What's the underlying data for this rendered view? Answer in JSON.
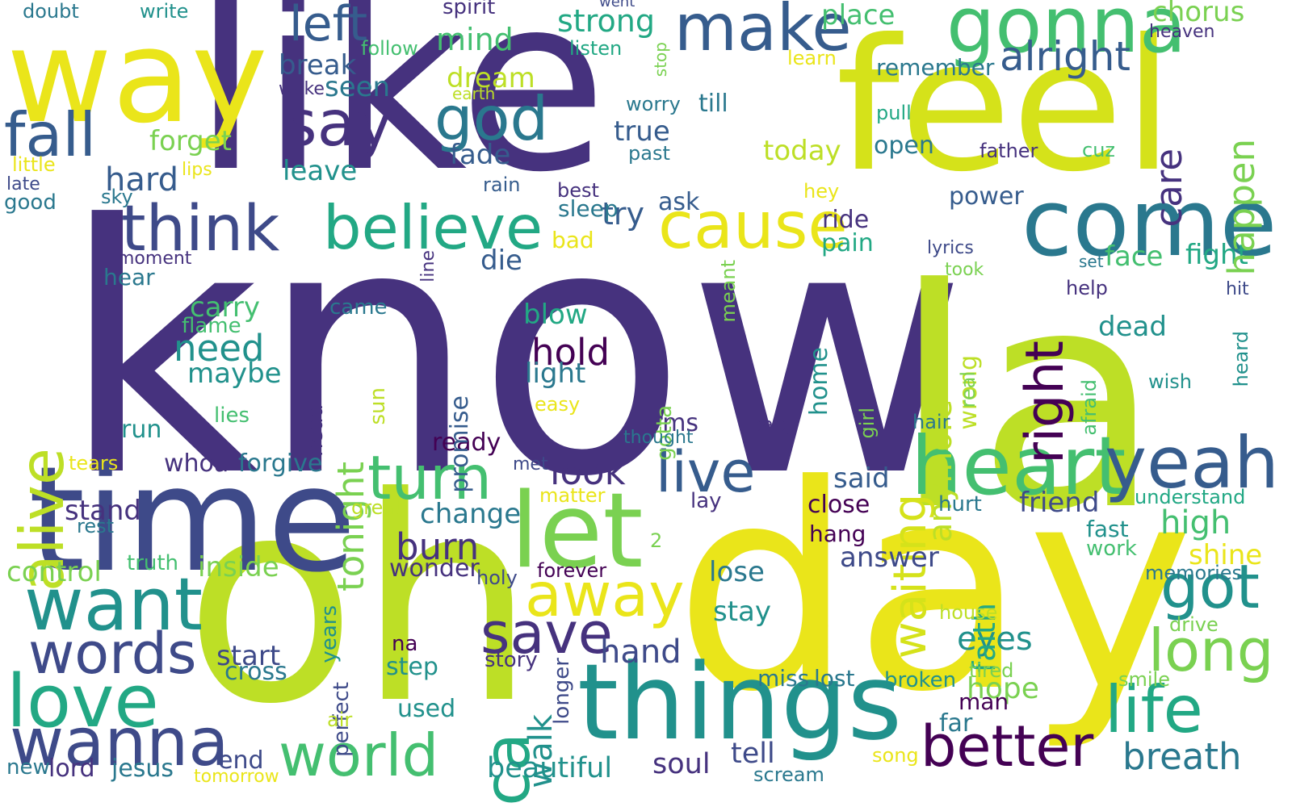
{
  "palette": {
    "dark_purple": "#46327e",
    "indigo": "#3e4a89",
    "blue": "#365c8d",
    "teal_blue": "#2a788e",
    "teal": "#21918c",
    "green_teal": "#22a884",
    "green": "#44bf70",
    "light_green": "#7ad151",
    "yellow_green": "#bddf26",
    "yellow": "#eae51a",
    "deep_purple": "#440154"
  },
  "words": [
    {
      "text": "know",
      "color": "#46327e"
    },
    {
      "text": "like",
      "color": "#46327e"
    },
    {
      "text": "la",
      "color": "#bddf26"
    },
    {
      "text": "day",
      "color": "#eae51a"
    },
    {
      "text": "oh",
      "color": "#bddf26"
    },
    {
      "text": "feel",
      "color": "#d5e21a"
    },
    {
      "text": "way",
      "color": "#eae51a"
    },
    {
      "text": "time",
      "color": "#3e4a89"
    },
    {
      "text": "things",
      "color": "#21918c"
    },
    {
      "text": "come",
      "color": "#2a788e"
    },
    {
      "text": "heart",
      "color": "#44bf70"
    },
    {
      "text": "let",
      "color": "#7ad151"
    },
    {
      "text": "gonna",
      "color": "#44bf70"
    },
    {
      "text": "yeah",
      "color": "#365c8d"
    },
    {
      "text": "want",
      "color": "#21918c"
    },
    {
      "text": "love",
      "color": "#22a884"
    },
    {
      "text": "wanna",
      "color": "#3e4a89"
    },
    {
      "text": "make",
      "color": "#365c8d"
    },
    {
      "text": "think",
      "color": "#3e4a89"
    },
    {
      "text": "cause",
      "color": "#eae51a"
    },
    {
      "text": "believe",
      "color": "#22a884"
    },
    {
      "text": "turn",
      "color": "#44bf70"
    },
    {
      "text": "away",
      "color": "#eae51a"
    },
    {
      "text": "say",
      "color": "#46327e"
    },
    {
      "text": "world",
      "color": "#44bf70"
    },
    {
      "text": "life",
      "color": "#22a884"
    },
    {
      "text": "better",
      "color": "#440154"
    },
    {
      "text": "words",
      "color": "#3e4a89"
    },
    {
      "text": "live",
      "color": "#365c8d"
    },
    {
      "text": "save",
      "color": "#46327e"
    },
    {
      "text": "got",
      "color": "#21918c"
    },
    {
      "text": "god",
      "color": "#2a788e"
    },
    {
      "text": "fall",
      "color": "#365c8d"
    },
    {
      "text": "long",
      "color": "#7ad151"
    },
    {
      "text": "left",
      "color": "#365c8d"
    },
    {
      "text": "ca",
      "color": "#22a884"
    },
    {
      "text": "alive",
      "color": "#bddf26"
    },
    {
      "text": "waiting",
      "color": "#d5e21a"
    },
    {
      "text": "right",
      "color": "#440154"
    },
    {
      "text": "alright",
      "color": "#365c8d"
    },
    {
      "text": "breath",
      "color": "#2a788e"
    },
    {
      "text": "look",
      "color": "#46327e"
    },
    {
      "text": "hold",
      "color": "#440154"
    },
    {
      "text": "need",
      "color": "#21918c"
    },
    {
      "text": "burn",
      "color": "#46327e"
    },
    {
      "text": "beautiful",
      "color": "#21918c"
    },
    {
      "text": "hand",
      "color": "#3e4a89"
    },
    {
      "text": "soul",
      "color": "#46327e"
    },
    {
      "text": "tell",
      "color": "#3e4a89"
    },
    {
      "text": "eyes",
      "color": "#21918c"
    },
    {
      "text": "strong",
      "color": "#22a884"
    },
    {
      "text": "mind",
      "color": "#44bf70"
    },
    {
      "text": "chorus",
      "color": "#7ad151"
    },
    {
      "text": "place",
      "color": "#44bf70"
    },
    {
      "text": "true",
      "color": "#365c8d"
    },
    {
      "text": "today",
      "color": "#bddf26"
    },
    {
      "text": "face",
      "color": "#44bf70"
    },
    {
      "text": "fight",
      "color": "#22a884"
    },
    {
      "text": "high",
      "color": "#44bf70"
    },
    {
      "text": "hope",
      "color": "#7ad151"
    },
    {
      "text": "walk",
      "color": "#21918c"
    },
    {
      "text": "tonight",
      "color": "#7ad151"
    },
    {
      "text": "anymore",
      "color": "#bddf26"
    },
    {
      "text": "care",
      "color": "#46327e"
    },
    {
      "text": "happen",
      "color": "#7ad151"
    },
    {
      "text": "faith",
      "color": "#22a884"
    },
    {
      "text": "hard",
      "color": "#365c8d"
    },
    {
      "text": "break",
      "color": "#365c8d"
    },
    {
      "text": "fade",
      "color": "#365c8d"
    },
    {
      "text": "forget",
      "color": "#7ad151"
    },
    {
      "text": "dream",
      "color": "#bddf26"
    },
    {
      "text": "seen",
      "color": "#2a788e"
    },
    {
      "text": "leave",
      "color": "#21918c"
    },
    {
      "text": "maybe",
      "color": "#21918c"
    },
    {
      "text": "carry",
      "color": "#44bf70"
    },
    {
      "text": "die",
      "color": "#365c8d"
    },
    {
      "text": "light",
      "color": "#2a788e"
    },
    {
      "text": "blow",
      "color": "#22a884"
    },
    {
      "text": "try",
      "color": "#365c8d"
    },
    {
      "text": "bad",
      "color": "#eae51a"
    },
    {
      "text": "change",
      "color": "#2a788e"
    },
    {
      "text": "said",
      "color": "#365c8d"
    },
    {
      "text": "answer",
      "color": "#3e4a89"
    },
    {
      "text": "dead",
      "color": "#21918c"
    },
    {
      "text": "start",
      "color": "#3e4a89"
    },
    {
      "text": "control",
      "color": "#7ad151"
    },
    {
      "text": "inside",
      "color": "#7ad151"
    },
    {
      "text": "stay",
      "color": "#21918c"
    },
    {
      "text": "lose",
      "color": "#2a788e"
    },
    {
      "text": "shine",
      "color": "#eae51a"
    },
    {
      "text": "friend",
      "color": "#3e4a89"
    },
    {
      "text": "stand",
      "color": "#46327e"
    },
    {
      "text": "wonder",
      "color": "#46327e"
    },
    {
      "text": "step",
      "color": "#21918c"
    },
    {
      "text": "cross",
      "color": "#2a788e"
    },
    {
      "text": "used",
      "color": "#21918c"
    },
    {
      "text": "end",
      "color": "#3e4a89"
    },
    {
      "text": "lord",
      "color": "#46327e"
    },
    {
      "text": "jesus",
      "color": "#2a788e"
    },
    {
      "text": "run",
      "color": "#21918c"
    },
    {
      "text": "arms",
      "color": "#46327e"
    },
    {
      "text": "ready",
      "color": "#440154"
    },
    {
      "text": "whoa",
      "color": "#46327e"
    },
    {
      "text": "forgive",
      "color": "#2a788e"
    },
    {
      "text": "power",
      "color": "#365c8d"
    },
    {
      "text": "ride",
      "color": "#46327e"
    },
    {
      "text": "pain",
      "color": "#22a884"
    },
    {
      "text": "open",
      "color": "#2a788e"
    },
    {
      "text": "remember",
      "color": "#2a788e"
    },
    {
      "text": "till",
      "color": "#2a788e"
    },
    {
      "text": "ask",
      "color": "#365c8d"
    },
    {
      "text": "sleep",
      "color": "#2a788e"
    },
    {
      "text": "close",
      "color": "#440154"
    },
    {
      "text": "hang",
      "color": "#440154"
    },
    {
      "text": "home",
      "color": "#21918c"
    },
    {
      "text": "wrong",
      "color": "#bddf26"
    },
    {
      "text": "far",
      "color": "#2a788e"
    },
    {
      "text": "man",
      "color": "#440154"
    },
    {
      "text": "fast",
      "color": "#21918c"
    },
    {
      "text": "work",
      "color": "#44bf70"
    },
    {
      "text": "lost",
      "color": "#2a788e"
    },
    {
      "text": "miss",
      "color": "#2a788e"
    },
    {
      "text": "broken",
      "color": "#21918c"
    },
    {
      "text": "tired",
      "color": "#7ad151"
    },
    {
      "text": "smile",
      "color": "#7ad151"
    },
    {
      "text": "memories",
      "color": "#2a788e"
    },
    {
      "text": "understand",
      "color": "#22a884"
    },
    {
      "text": "drive",
      "color": "#7ad151"
    },
    {
      "text": "hurt",
      "color": "#2a788e"
    },
    {
      "text": "lay",
      "color": "#46327e"
    },
    {
      "text": "met",
      "color": "#3e4a89"
    },
    {
      "text": "matter",
      "color": "#eae51a"
    },
    {
      "text": "great",
      "color": "#bddf26"
    },
    {
      "text": "forever",
      "color": "#440154"
    },
    {
      "text": "holy",
      "color": "#3e4a89"
    },
    {
      "text": "truth",
      "color": "#44bf70"
    },
    {
      "text": "rest",
      "color": "#2a788e"
    },
    {
      "text": "promise",
      "color": "#365c8d"
    },
    {
      "text": "came",
      "color": "#2a788e"
    },
    {
      "text": "sun",
      "color": "#bddf26"
    },
    {
      "text": "gotta",
      "color": "#7ad151"
    },
    {
      "text": "head",
      "color": "#46327e"
    },
    {
      "text": "story",
      "color": "#46327e"
    },
    {
      "text": "perfect",
      "color": "#3e4a89"
    },
    {
      "text": "years",
      "color": "#21918c"
    },
    {
      "text": "longer",
      "color": "#3e4a89"
    },
    {
      "text": "na",
      "color": "#440154"
    },
    {
      "text": "air",
      "color": "#bddf26"
    },
    {
      "text": "new",
      "color": "#2a788e"
    },
    {
      "text": "tomorrow",
      "color": "#eae51a"
    },
    {
      "text": "scream",
      "color": "#2a788e"
    },
    {
      "text": "song",
      "color": "#eae51a"
    },
    {
      "text": "house",
      "color": "#bddf26"
    },
    {
      "text": "watch",
      "color": "#eae51a"
    },
    {
      "text": "2",
      "color": "#7ad151"
    },
    {
      "text": "hey",
      "color": "#eae51a"
    },
    {
      "text": "father",
      "color": "#46327e"
    },
    {
      "text": "cuz",
      "color": "#44bf70"
    },
    {
      "text": "past",
      "color": "#2a788e"
    },
    {
      "text": "worry",
      "color": "#2a788e"
    },
    {
      "text": "best",
      "color": "#46327e"
    },
    {
      "text": "rain",
      "color": "#365c8d"
    },
    {
      "text": "lips",
      "color": "#eae51a"
    },
    {
      "text": "little",
      "color": "#eae51a"
    },
    {
      "text": "late",
      "color": "#3e4a89"
    },
    {
      "text": "good",
      "color": "#2a788e"
    },
    {
      "text": "sky",
      "color": "#2a788e"
    },
    {
      "text": "moment",
      "color": "#46327e"
    },
    {
      "text": "hear",
      "color": "#2a788e"
    },
    {
      "text": "flame",
      "color": "#44bf70"
    },
    {
      "text": "lies",
      "color": "#44bf70"
    },
    {
      "text": "tears",
      "color": "#eae51a"
    },
    {
      "text": "easy",
      "color": "#eae51a"
    },
    {
      "text": "thought",
      "color": "#2a788e"
    },
    {
      "text": "baby",
      "color": "#46327e"
    },
    {
      "text": "girl",
      "color": "#7ad151"
    },
    {
      "text": "hair",
      "color": "#2a788e"
    },
    {
      "text": "real",
      "color": "#7ad151"
    },
    {
      "text": "afraid",
      "color": "#44bf70"
    },
    {
      "text": "wish",
      "color": "#21918c"
    },
    {
      "text": "heard",
      "color": "#21918c"
    },
    {
      "text": "help",
      "color": "#46327e"
    },
    {
      "text": "hit",
      "color": "#3e4a89"
    },
    {
      "text": "meant",
      "color": "#7ad151"
    },
    {
      "text": "line",
      "color": "#46327e"
    },
    {
      "text": "lyrics",
      "color": "#3e4a89"
    },
    {
      "text": "took",
      "color": "#7ad151"
    },
    {
      "text": "set",
      "color": "#2a788e"
    },
    {
      "text": "pull",
      "color": "#22a884"
    },
    {
      "text": "learn",
      "color": "#eae51a"
    },
    {
      "text": "heaven",
      "color": "#46327e"
    },
    {
      "text": "stop",
      "color": "#7ad151"
    },
    {
      "text": "listen",
      "color": "#22a884"
    },
    {
      "text": "went",
      "color": "#3e4a89"
    },
    {
      "text": "follow",
      "color": "#44bf70"
    },
    {
      "text": "earth",
      "color": "#bddf26"
    },
    {
      "text": "wake",
      "color": "#46327e"
    },
    {
      "text": "spirit",
      "color": "#46327e"
    },
    {
      "text": "write",
      "color": "#21918c"
    },
    {
      "text": "doubt",
      "color": "#2a788e"
    }
  ]
}
